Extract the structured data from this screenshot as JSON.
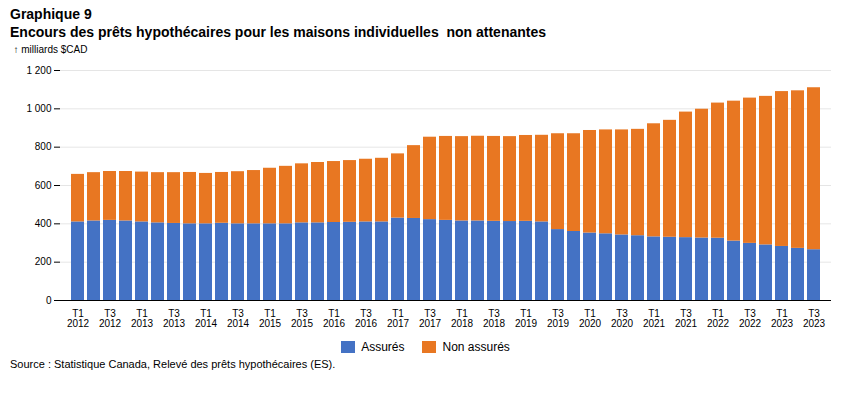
{
  "chart_data": {
    "type": "bar",
    "stacked": true,
    "title": "Graphique 9",
    "subtitle": "Encours des prêts hypothécaires pour les maisons individuelles  non attenantes",
    "ylabel": "milliards $CAD",
    "source": "Source : Statistique Canada, Relevé des prêts hypothécaires (ES).",
    "categories": [
      "T1\n2012",
      null,
      "T3\n2012",
      null,
      "T1\n2013",
      null,
      "T3\n2013",
      null,
      "T1\n2014",
      null,
      "T3\n2014",
      null,
      "T1\n2015",
      null,
      "T3\n2015",
      null,
      "T1\n2016",
      null,
      "T3\n2016",
      null,
      "T1\n2017",
      null,
      "T3\n2017",
      null,
      "T1\n2018",
      null,
      "T3\n2018",
      null,
      "T1\n2019",
      null,
      "T3\n2019",
      null,
      "T1\n2020",
      null,
      "T3\n2020",
      null,
      "T1\n2021",
      null,
      "T3\n2021",
      null,
      "T1\n2022",
      null,
      "T3\n2022",
      null,
      "T1\n2023",
      null,
      "T3\n2023"
    ],
    "series": [
      {
        "name": "Assurés",
        "color": "#4472C4",
        "values": [
          410,
          415,
          418,
          415,
          410,
          405,
          402,
          400,
          400,
          403,
          400,
          400,
          400,
          400,
          405,
          405,
          407,
          408,
          410,
          410,
          430,
          428,
          422,
          418,
          415,
          415,
          413,
          412,
          413,
          410,
          370,
          360,
          352,
          348,
          342,
          338,
          332,
          330,
          328,
          326,
          325,
          310,
          298,
          290,
          282,
          272,
          265
        ]
      },
      {
        "name": "Non assurés",
        "color": "#E87722",
        "values": [
          248,
          252,
          255,
          258,
          260,
          262,
          265,
          268,
          263,
          265,
          272,
          278,
          290,
          300,
          308,
          315,
          318,
          322,
          327,
          332,
          335,
          380,
          430,
          438,
          440,
          442,
          443,
          443,
          448,
          452,
          500,
          510,
          535,
          542,
          548,
          555,
          590,
          610,
          655,
          672,
          705,
          730,
          758,
          775,
          808,
          822,
          845
        ]
      }
    ],
    "ylim": [
      0,
      1200
    ],
    "yticks": [
      0,
      200,
      400,
      600,
      800,
      {
        "value": 1000,
        "label": "1 000"
      },
      {
        "value": 1200,
        "label": "1 200"
      }
    ],
    "grid": true,
    "legend": "bottom"
  }
}
